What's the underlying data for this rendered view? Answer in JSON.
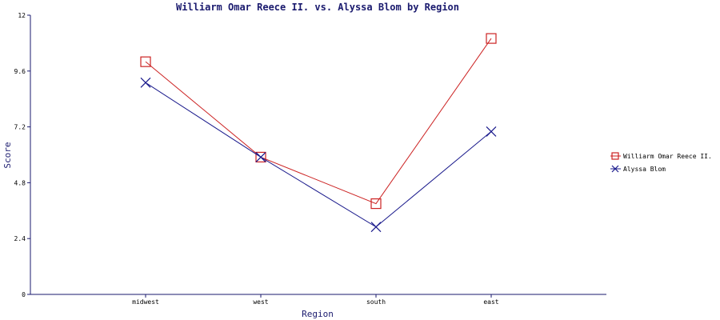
{
  "chart_data": {
    "type": "line",
    "title": "Williarm Omar Reece II. vs. Alyssa Blom by Region",
    "xlabel": "Region",
    "ylabel": "Score",
    "categories": [
      "midwest",
      "west",
      "south",
      "east"
    ],
    "ylim": [
      0,
      12
    ],
    "yticks": [
      "0",
      "2.4",
      "4.8",
      "7.2",
      "9.6",
      "12"
    ],
    "grid": false,
    "legend_position": "right",
    "series": [
      {
        "name": "Williarm Omar Reece II.",
        "values": [
          10.0,
          5.9,
          3.9,
          11.0
        ],
        "color": "#cc2222",
        "marker": "square"
      },
      {
        "name": "Alyssa Blom",
        "values": [
          9.1,
          5.9,
          2.9,
          7.0
        ],
        "color": "#1a1a8c",
        "marker": "x"
      }
    ]
  }
}
